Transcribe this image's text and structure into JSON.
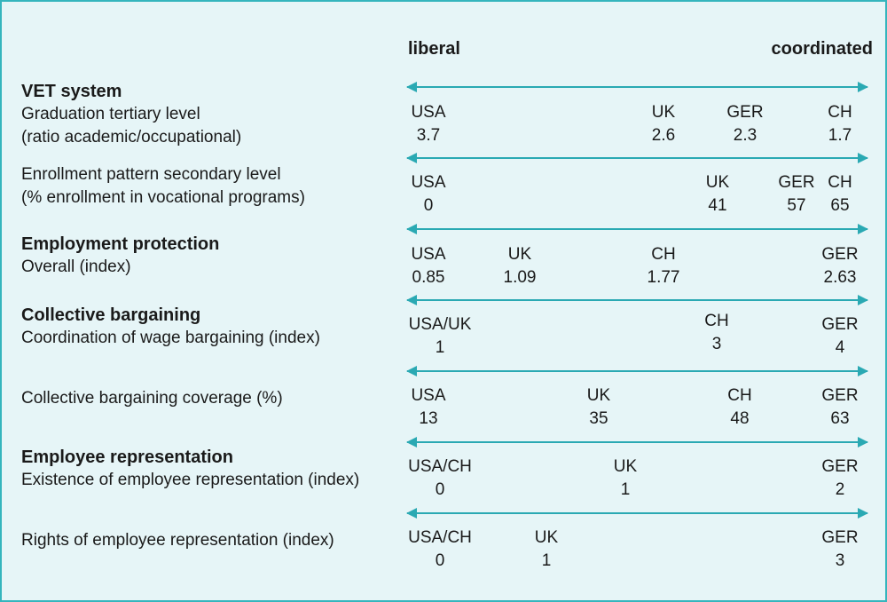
{
  "header": {
    "left": "liberal",
    "right": "coordinated"
  },
  "colors": {
    "background": "#e6f5f7",
    "arrow": "#2aa9b3",
    "border": "#35b5bd"
  },
  "rows": [
    {
      "section": "VET system",
      "label_lines": [
        "Graduation tertiary level",
        "(ratio academic/occupational)"
      ],
      "entries": [
        {
          "country": "USA",
          "value": "3.7"
        },
        {
          "country": "UK",
          "value": "2.6"
        },
        {
          "country": "GER",
          "value": "2.3"
        },
        {
          "country": "CH",
          "value": "1.7"
        }
      ]
    },
    {
      "section": "",
      "label_lines": [
        "Enrollment pattern secondary level",
        "(% enrollment in vocational programs)"
      ],
      "entries": [
        {
          "country": "USA",
          "value": "0"
        },
        {
          "country": "UK",
          "value": "41"
        },
        {
          "country": "GER",
          "value": "57"
        },
        {
          "country": "CH",
          "value": "65"
        }
      ]
    },
    {
      "section": "Employment protection",
      "label_lines": [
        "Overall (index)"
      ],
      "entries": [
        {
          "country": "USA",
          "value": "0.85"
        },
        {
          "country": "UK",
          "value": "1.09"
        },
        {
          "country": "CH",
          "value": "1.77"
        },
        {
          "country": "GER",
          "value": "2.63"
        }
      ]
    },
    {
      "section": "Collective bargaining",
      "label_lines": [
        "Coordination of wage bargaining (index)"
      ],
      "entries": [
        {
          "country": "USA/UK",
          "value": "1"
        },
        {
          "country": "CH",
          "value": "3"
        },
        {
          "country": "GER",
          "value": "4"
        }
      ]
    },
    {
      "section": "",
      "label_lines": [
        "Collective bargaining coverage (%)"
      ],
      "entries": [
        {
          "country": "USA",
          "value": "13"
        },
        {
          "country": "UK",
          "value": "35"
        },
        {
          "country": "CH",
          "value": "48"
        },
        {
          "country": "GER",
          "value": "63"
        }
      ]
    },
    {
      "section": "Employee representation",
      "label_lines": [
        "Existence of employee representation (index)"
      ],
      "entries": [
        {
          "country": "USA/CH",
          "value": "0"
        },
        {
          "country": "UK",
          "value": "1"
        },
        {
          "country": "GER",
          "value": "2"
        }
      ]
    },
    {
      "section": "",
      "label_lines": [
        "Rights of employee representation (index)"
      ],
      "entries": [
        {
          "country": "USA/CH",
          "value": "0"
        },
        {
          "country": "UK",
          "value": "1"
        },
        {
          "country": "GER",
          "value": "3"
        }
      ]
    }
  ]
}
